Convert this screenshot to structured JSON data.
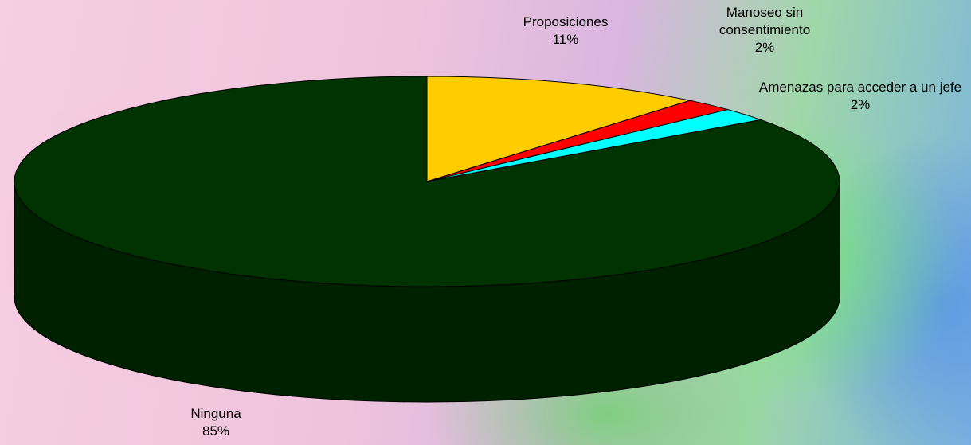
{
  "chart_data": {
    "type": "pie3d",
    "categories": [
      "Proposiciones",
      "Manoseo sin consentimiento",
      "Amenazas para acceder a un jefe",
      "Ninguna"
    ],
    "values": [
      11,
      2,
      2,
      85
    ],
    "value_labels": [
      "11%",
      "2%",
      "2%",
      "85%"
    ],
    "colors": [
      "#ffcc00",
      "#ff0000",
      "#00ffff",
      "#003300"
    ]
  }
}
